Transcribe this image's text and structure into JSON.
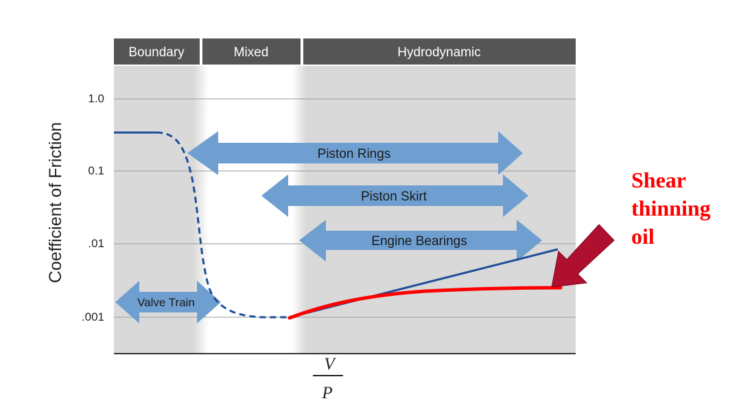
{
  "regimes": [
    {
      "key": "boundary",
      "label": "Boundary"
    },
    {
      "key": "mixed",
      "label": "Mixed"
    },
    {
      "key": "hydrodynamic",
      "label": "Hydrodynamic"
    }
  ],
  "y_axis": {
    "label": "Coefficient of Friction",
    "scale": "log",
    "ticks": [
      "1.0",
      "0.1",
      ".01",
      ".001"
    ]
  },
  "x_axis": {
    "numerator": "V",
    "denominator": "P"
  },
  "ranges": {
    "piston_rings": "Piston Rings",
    "piston_skirt": "Piston Skirt",
    "engine_bearings": "Engine Bearings",
    "valve_train": "Valve Train"
  },
  "annotation": {
    "line1": "Shear",
    "line2": "thinning",
    "line3": "oil"
  },
  "colors": {
    "header_bar": "#555555",
    "plot_background": "#d9d9d9",
    "mixed_band": "#ffffff",
    "range_arrow": "#6f9fd0",
    "stribeck_curve": "#1f4e9a",
    "shear_thinning_curve": "#ff0000",
    "annotation_text": "#ff0000",
    "pointer_arrow": "#b0102f"
  }
}
